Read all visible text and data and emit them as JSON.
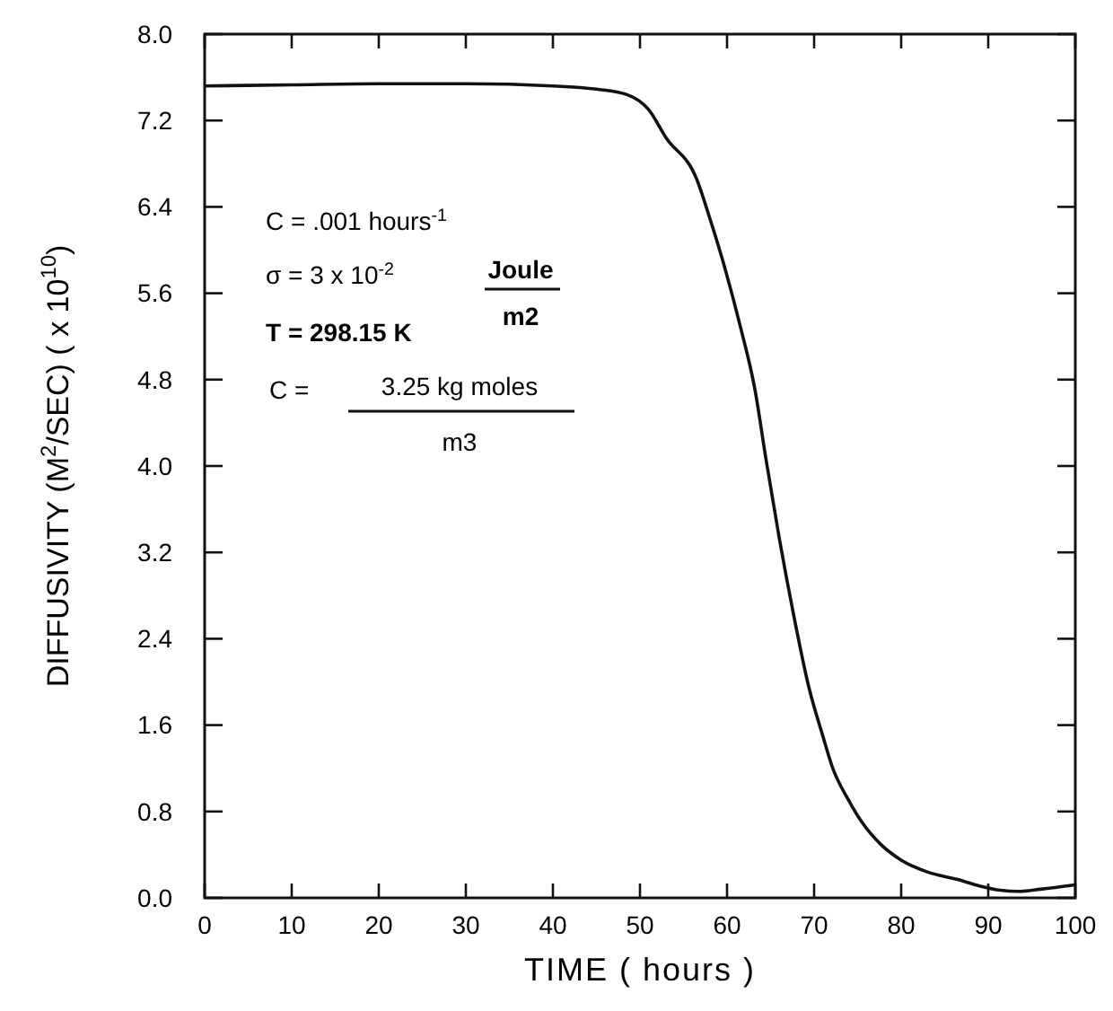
{
  "chart_data": {
    "type": "line",
    "xlabel": "TIME ( hours )",
    "ylabel": "DIFFUSIVITY (M$^{2}$/SEC)  ( x 10$^{10}$)",
    "xlim": [
      0,
      100
    ],
    "xticks": [
      0,
      10,
      20,
      30,
      40,
      50,
      60,
      70,
      80,
      90,
      100
    ],
    "ylim": [
      0,
      8
    ],
    "yticks": [
      {
        "value": 0,
        "label": "0.0"
      },
      0.8,
      1.6,
      2.4,
      3.2,
      {
        "value": 4,
        "label": "4.0"
      },
      4.8,
      5.6,
      6.4,
      7.2,
      {
        "value": 8,
        "label": "8.0"
      }
    ],
    "grid": false,
    "marker": "none",
    "line_style": "solid",
    "series": [
      {
        "color": "#111111",
        "x": [
          0,
          10,
          20,
          30,
          40,
          45,
          48.5,
          51,
          53,
          56.5,
          58,
          59.8,
          61.5,
          63.2,
          64.5,
          66,
          67.7,
          69.4,
          71,
          72.1,
          74,
          75.5,
          77.6,
          80,
          83,
          86.5,
          89,
          91.4,
          93.5,
          96,
          100
        ],
        "values": [
          7.52,
          7.53,
          7.54,
          7.54,
          7.52,
          7.49,
          7.44,
          7.3,
          7.04,
          6.66,
          6.3,
          5.82,
          5.3,
          4.71,
          4.05,
          3.33,
          2.6,
          1.95,
          1.5,
          1.21,
          0.9,
          0.7,
          0.5,
          0.35,
          0.24,
          0.17,
          0.11,
          0.07,
          0.06,
          0.08,
          0.12
        ]
      }
    ],
    "annotations": [
      "C = .001 hours$^{-1}$",
      "σ = 3 x 10$^{-2}$",
      "Joule",
      "m2",
      "T = 298.15 K",
      "C =",
      "3.25 kg moles",
      "m3"
    ]
  }
}
